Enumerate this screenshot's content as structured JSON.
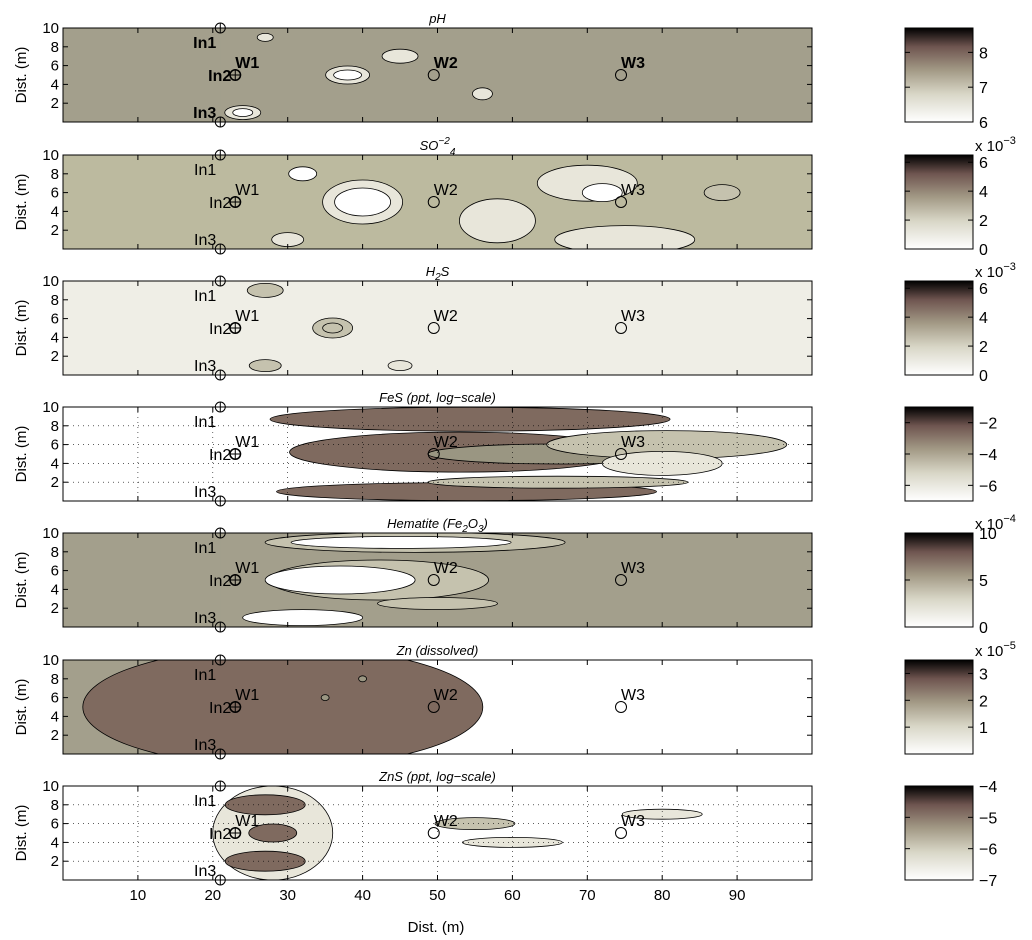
{
  "chart_data": {
    "type": "heatmap",
    "xlabel": "Dist. (m)",
    "xlim": [
      0,
      100
    ],
    "xticks": [
      10,
      20,
      30,
      40,
      50,
      60,
      70,
      80,
      90
    ],
    "ylabel": "Dist. (m)",
    "ylim": [
      0,
      10
    ],
    "yticks": [
      2,
      4,
      6,
      8,
      10
    ],
    "colormap": [
      "#ffffff",
      "#e8e6da",
      "#c5c2ae",
      "#9a9682",
      "#7f6a5f",
      "#4a3030",
      "#000000"
    ],
    "injection_points": [
      {
        "name": "In1",
        "x": 21,
        "y": 10
      },
      {
        "name": "In2",
        "x": 23,
        "y": 5
      },
      {
        "name": "In3",
        "x": 21,
        "y": 0
      }
    ],
    "wells": [
      {
        "name": "W1",
        "x": 23,
        "y": 5
      },
      {
        "name": "W2",
        "x": 49.5,
        "y": 5
      },
      {
        "name": "W3",
        "x": 74.5,
        "y": 5
      }
    ],
    "panels": [
      {
        "title": "pH",
        "grid": false,
        "bg": "#a39f8c",
        "colorbar": {
          "min": 6,
          "max": 8.7,
          "ticks": [
            "6",
            "7",
            "8"
          ],
          "exponent": ""
        }
      },
      {
        "title": "SO",
        "title_sub": "4",
        "title_sup": "−2",
        "grid": false,
        "bg": "#bcba9f",
        "colorbar": {
          "min": 0,
          "max": 0.0065,
          "ticks": [
            "0",
            "2",
            "4",
            "6"
          ],
          "exponent": "x 10"
        }
      },
      {
        "title": "H",
        "title_sub": "2",
        "title_tail": "S",
        "grid": false,
        "bg": "#efeee6",
        "colorbar": {
          "min": 0,
          "max": 0.0065,
          "ticks": [
            "0",
            "2",
            "4",
            "6"
          ],
          "exponent": "x 10"
        }
      },
      {
        "title": "FeS (ppt, log−scale)",
        "grid": true,
        "bg": "#ffffff",
        "colorbar": {
          "min": -7,
          "max": -1,
          "ticks": [
            "−6",
            "−4",
            "−2"
          ],
          "exponent": ""
        }
      },
      {
        "title": "Hematite (Fe",
        "title_sub": "2",
        "title_tail": "O",
        "title_sub2": "3",
        "title_end": ")",
        "grid": false,
        "bg": "#a39f8c",
        "colorbar": {
          "min": 0,
          "max": 0.001,
          "ticks": [
            "0",
            "5",
            "10"
          ],
          "exponent": "x 10"
        }
      },
      {
        "title": "Zn (dissolved)",
        "grid": false,
        "bg": "#ffffff",
        "colorbar": {
          "min": 0,
          "max": 3.5e-05,
          "ticks": [
            "1",
            "2",
            "3"
          ],
          "exponent": "x 10"
        }
      },
      {
        "title": "ZnS (ppt, log−scale)",
        "grid": true,
        "bg": "#ffffff",
        "colorbar": {
          "min": -7,
          "max": -4,
          "ticks": [
            "−7",
            "−6",
            "−5",
            "−4"
          ],
          "exponent": ""
        }
      }
    ],
    "exponents": [
      "−3",
      "−3",
      "−4",
      "−5"
    ]
  }
}
